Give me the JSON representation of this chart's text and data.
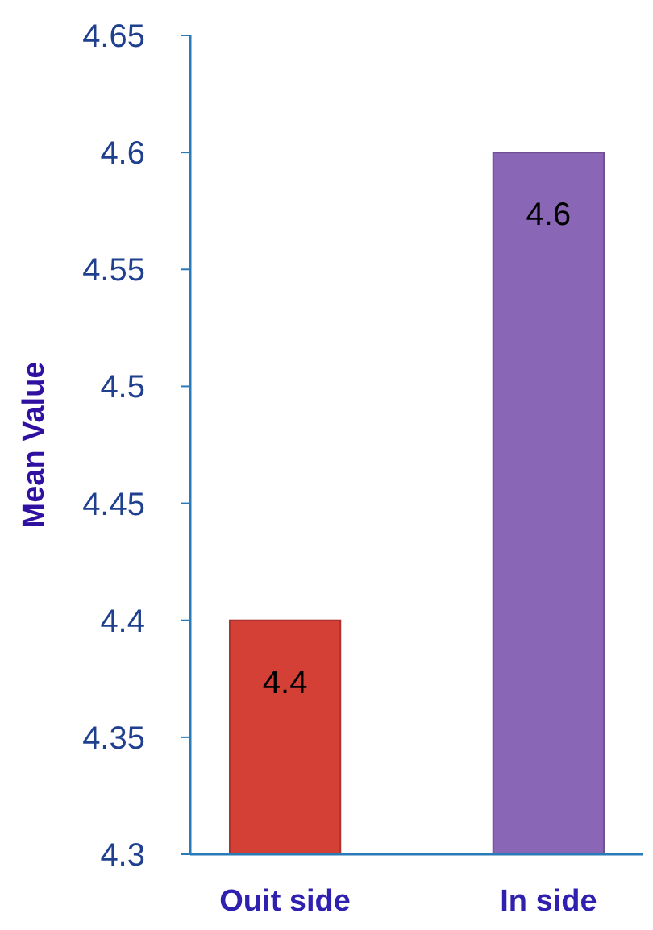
{
  "chart_data": {
    "type": "bar",
    "ylabel": "Mean Value",
    "categories": [
      "Ouit side",
      "In side"
    ],
    "values": [
      4.4,
      4.6
    ],
    "colors": [
      "#d43f36",
      "#8a66b6"
    ],
    "ylim": [
      4.3,
      4.65
    ],
    "yticks": [
      4.3,
      4.35,
      4.4,
      4.45,
      4.5,
      4.55,
      4.6,
      4.65
    ],
    "grid": false,
    "data_labels": true
  }
}
